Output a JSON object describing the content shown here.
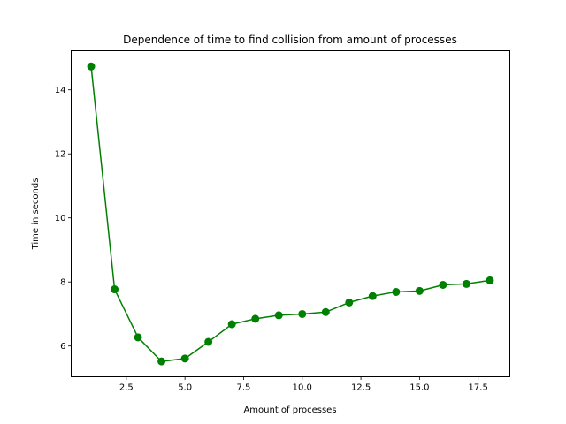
{
  "chart_data": {
    "type": "line",
    "title": "Dependence of time to find collision from amount of processes",
    "xlabel": "Amount of processes",
    "ylabel": "Time in seconds",
    "xlim": [
      0.15,
      18.85
    ],
    "ylim": [
      5.04,
      15.22
    ],
    "xticks": [
      2.5,
      5.0,
      7.5,
      10.0,
      12.5,
      15.0,
      17.5
    ],
    "xtick_labels": [
      "2.5",
      "5.0",
      "7.5",
      "10.0",
      "12.5",
      "15.0",
      "17.5"
    ],
    "yticks": [
      6,
      8,
      10,
      12,
      14
    ],
    "ytick_labels": [
      "6",
      "8",
      "10",
      "12",
      "14"
    ],
    "grid": false,
    "series": [
      {
        "name": "time",
        "color": "#008000",
        "marker": "circle",
        "x": [
          1,
          2,
          3,
          4,
          5,
          6,
          7,
          8,
          9,
          10,
          11,
          12,
          13,
          14,
          15,
          16,
          17,
          18
        ],
        "values": [
          14.73,
          7.77,
          6.27,
          5.52,
          5.61,
          6.13,
          6.68,
          6.85,
          6.96,
          7.0,
          7.06,
          7.36,
          7.56,
          7.69,
          7.72,
          7.91,
          7.94,
          8.05
        ]
      }
    ]
  }
}
